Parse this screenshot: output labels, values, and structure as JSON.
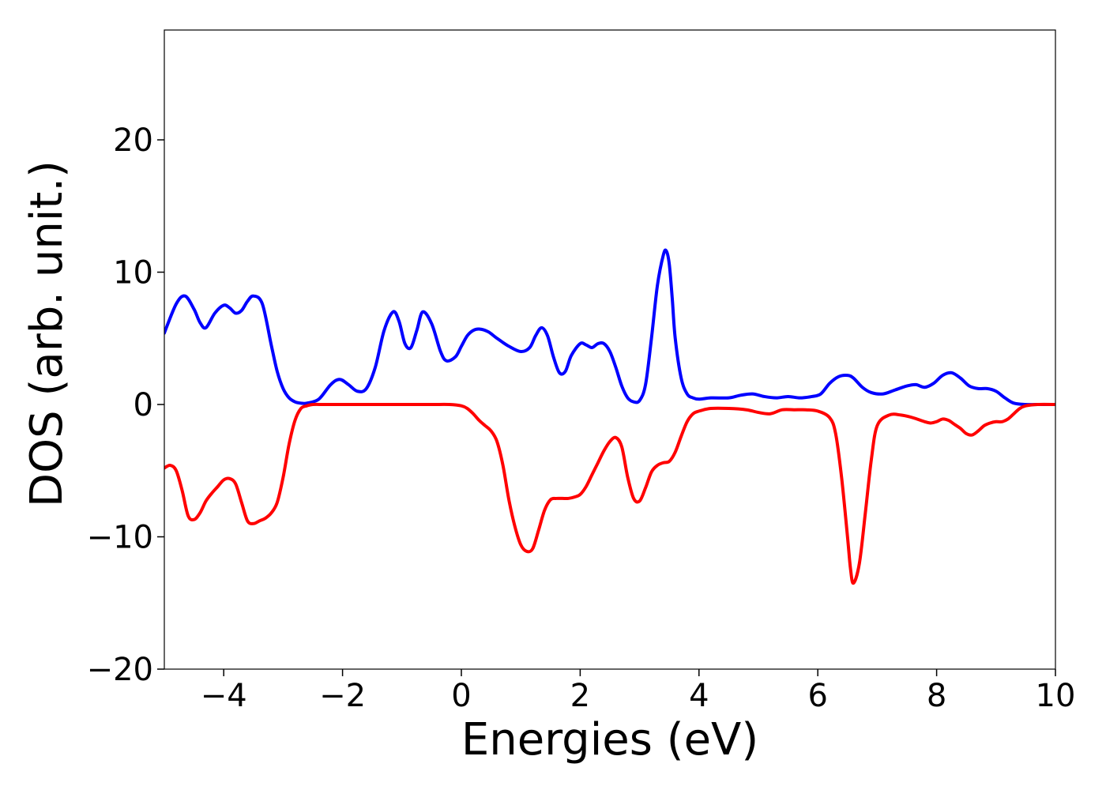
{
  "chart_data": {
    "type": "line",
    "title": "",
    "xlabel": "Energies (eV)",
    "ylabel": "DOS (arb. unit.)",
    "xlim": [
      -5,
      10
    ],
    "ylim": [
      -20,
      28.3
    ],
    "xticks": [
      -4,
      -2,
      0,
      2,
      4,
      6,
      8,
      10
    ],
    "xtick_labels": [
      "−4",
      "−2",
      "0",
      "2",
      "4",
      "6",
      "8",
      "10"
    ],
    "yticks": [
      -20,
      -10,
      0,
      10,
      20
    ],
    "ytick_labels": [
      "−20",
      "−10",
      "0",
      "10",
      "20"
    ],
    "grid": false,
    "legend": "none",
    "series": [
      {
        "color": "#0000ff",
        "x": [
          -5.0,
          -4.8,
          -4.65,
          -4.5,
          -4.4,
          -4.3,
          -4.15,
          -4.0,
          -3.9,
          -3.8,
          -3.7,
          -3.6,
          -3.5,
          -3.35,
          -3.2,
          -3.1,
          -3.0,
          -2.9,
          -2.8,
          -2.7,
          -2.6,
          -2.4,
          -2.2,
          -2.05,
          -1.9,
          -1.75,
          -1.6,
          -1.45,
          -1.3,
          -1.15,
          -1.05,
          -0.95,
          -0.85,
          -0.75,
          -0.65,
          -0.5,
          -0.35,
          -0.25,
          -0.1,
          0.0,
          0.1,
          0.2,
          0.3,
          0.45,
          0.6,
          0.8,
          1.0,
          1.15,
          1.25,
          1.35,
          1.45,
          1.55,
          1.65,
          1.75,
          1.85,
          2.0,
          2.1,
          2.2,
          2.3,
          2.4,
          2.5,
          2.6,
          2.7,
          2.8,
          2.9,
          3.0,
          3.1,
          3.2,
          3.3,
          3.4,
          3.45,
          3.5,
          3.55,
          3.6,
          3.7,
          3.8,
          3.9,
          4.0,
          4.2,
          4.5,
          4.7,
          4.9,
          5.1,
          5.3,
          5.5,
          5.7,
          5.9,
          6.05,
          6.2,
          6.35,
          6.5,
          6.6,
          6.75,
          6.9,
          7.1,
          7.3,
          7.5,
          7.65,
          7.8,
          7.95,
          8.1,
          8.25,
          8.4,
          8.55,
          8.7,
          8.85,
          9.0,
          9.15,
          9.3,
          9.5,
          9.7,
          10.0
        ],
        "y": [
          5.4,
          7.6,
          8.2,
          7.2,
          6.2,
          5.8,
          6.9,
          7.5,
          7.3,
          6.9,
          7.1,
          7.8,
          8.2,
          7.6,
          4.5,
          2.5,
          1.2,
          0.5,
          0.2,
          0.1,
          0.1,
          0.4,
          1.5,
          1.9,
          1.5,
          1.0,
          1.2,
          2.8,
          5.6,
          7.0,
          6.3,
          4.6,
          4.3,
          5.6,
          7.0,
          6.1,
          4.0,
          3.3,
          3.6,
          4.4,
          5.2,
          5.6,
          5.7,
          5.5,
          5.0,
          4.4,
          4.0,
          4.3,
          5.2,
          5.8,
          5.2,
          3.6,
          2.4,
          2.5,
          3.7,
          4.6,
          4.5,
          4.3,
          4.6,
          4.6,
          4.0,
          2.8,
          1.4,
          0.5,
          0.2,
          0.3,
          1.5,
          5.0,
          9.0,
          11.3,
          11.6,
          10.6,
          8.0,
          5.0,
          2.0,
          0.8,
          0.5,
          0.4,
          0.5,
          0.5,
          0.7,
          0.8,
          0.6,
          0.5,
          0.6,
          0.5,
          0.6,
          0.8,
          1.6,
          2.1,
          2.2,
          2.0,
          1.3,
          0.9,
          0.8,
          1.1,
          1.4,
          1.5,
          1.3,
          1.6,
          2.2,
          2.4,
          2.0,
          1.4,
          1.2,
          1.2,
          1.0,
          0.5,
          0.1,
          0.0,
          0.0,
          0.0
        ]
      },
      {
        "color": "#ff0000",
        "x": [
          -5.0,
          -4.9,
          -4.8,
          -4.7,
          -4.6,
          -4.5,
          -4.4,
          -4.3,
          -4.2,
          -4.1,
          -4.0,
          -3.9,
          -3.8,
          -3.7,
          -3.6,
          -3.5,
          -3.4,
          -3.3,
          -3.2,
          -3.1,
          -3.0,
          -2.9,
          -2.8,
          -2.7,
          -2.6,
          -2.5,
          -2.3,
          -2.0,
          -1.5,
          -1.0,
          -0.5,
          -0.2,
          0.0,
          0.1,
          0.2,
          0.3,
          0.4,
          0.5,
          0.6,
          0.7,
          0.8,
          0.9,
          1.0,
          1.1,
          1.2,
          1.3,
          1.4,
          1.5,
          1.6,
          1.7,
          1.8,
          1.9,
          2.0,
          2.1,
          2.2,
          2.3,
          2.4,
          2.5,
          2.6,
          2.7,
          2.8,
          2.9,
          3.0,
          3.1,
          3.2,
          3.3,
          3.4,
          3.5,
          3.6,
          3.7,
          3.8,
          3.9,
          4.0,
          4.2,
          4.5,
          4.8,
          5.0,
          5.2,
          5.4,
          5.6,
          5.8,
          6.0,
          6.2,
          6.3,
          6.4,
          6.5,
          6.55,
          6.6,
          6.7,
          6.8,
          6.9,
          7.0,
          7.2,
          7.4,
          7.6,
          7.8,
          7.9,
          8.0,
          8.1,
          8.2,
          8.3,
          8.4,
          8.5,
          8.6,
          8.7,
          8.8,
          8.9,
          9.0,
          9.1,
          9.2,
          9.3,
          9.4,
          9.5,
          9.7,
          10.0
        ],
        "y": [
          -4.8,
          -4.6,
          -5.0,
          -6.5,
          -8.4,
          -8.7,
          -8.2,
          -7.3,
          -6.7,
          -6.2,
          -5.7,
          -5.6,
          -6.0,
          -7.4,
          -8.8,
          -9.0,
          -8.8,
          -8.6,
          -8.2,
          -7.4,
          -5.5,
          -3.0,
          -1.2,
          -0.3,
          -0.1,
          0.0,
          0.0,
          0.0,
          0.0,
          0.0,
          0.0,
          0.0,
          -0.1,
          -0.3,
          -0.7,
          -1.2,
          -1.6,
          -2.0,
          -2.8,
          -4.6,
          -7.2,
          -9.2,
          -10.6,
          -11.1,
          -10.9,
          -9.5,
          -8.0,
          -7.2,
          -7.1,
          -7.1,
          -7.1,
          -7.0,
          -6.8,
          -6.2,
          -5.3,
          -4.4,
          -3.5,
          -2.8,
          -2.5,
          -3.2,
          -5.5,
          -7.1,
          -7.3,
          -6.3,
          -5.1,
          -4.6,
          -4.4,
          -4.3,
          -3.6,
          -2.4,
          -1.3,
          -0.7,
          -0.5,
          -0.3,
          -0.3,
          -0.4,
          -0.6,
          -0.7,
          -0.4,
          -0.4,
          -0.4,
          -0.5,
          -1.0,
          -2.2,
          -5.5,
          -10.0,
          -12.4,
          -13.5,
          -12.0,
          -8.2,
          -4.2,
          -1.6,
          -0.8,
          -0.8,
          -1.0,
          -1.3,
          -1.4,
          -1.3,
          -1.1,
          -1.2,
          -1.5,
          -1.8,
          -2.2,
          -2.3,
          -2.0,
          -1.6,
          -1.4,
          -1.3,
          -1.3,
          -1.1,
          -0.7,
          -0.3,
          -0.1,
          0.0,
          0.0
        ]
      }
    ]
  }
}
